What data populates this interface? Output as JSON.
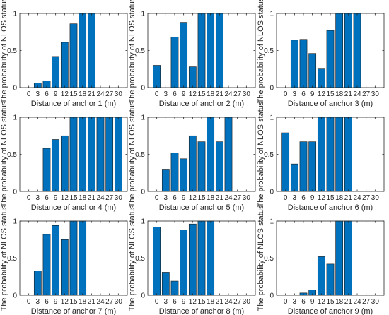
{
  "colors": {
    "bar": "#0072BD",
    "bar_edge": "#1a1a1a",
    "axis": "#262626",
    "background": "#ffffff"
  },
  "chart_data": [
    {
      "type": "bar",
      "xlabel": "Distance of anchor 1 (m)",
      "ylabel": "The probability of NLOS status",
      "categories": [
        "0",
        "3",
        "6",
        "9",
        "12",
        "15",
        "18",
        "21",
        "24",
        "27",
        "30"
      ],
      "values": [
        0,
        0.06,
        0.09,
        0.42,
        0.61,
        0.86,
        1.0,
        1.0,
        0,
        0,
        0
      ],
      "yticks": [
        "0",
        "0.5",
        "1"
      ],
      "ylim": [
        0,
        1
      ]
    },
    {
      "type": "bar",
      "xlabel": "Distance of anchor 2 (m)",
      "ylabel": "The probability of NLOS status",
      "categories": [
        "0",
        "3",
        "6",
        "9",
        "12",
        "15",
        "18",
        "21",
        "24",
        "27",
        "30"
      ],
      "values": [
        0.3,
        0,
        0.68,
        0.88,
        0.28,
        1.0,
        1.0,
        1.0,
        0,
        0,
        0
      ],
      "yticks": [
        "0",
        "0.5",
        "1"
      ],
      "ylim": [
        0,
        1
      ]
    },
    {
      "type": "bar",
      "xlabel": "Distance of anchor 3 (m)",
      "ylabel": "The probability of NLOS status",
      "categories": [
        "0",
        "3",
        "6",
        "9",
        "12",
        "15",
        "18",
        "21",
        "24",
        "27",
        "30"
      ],
      "values": [
        0,
        0.64,
        0.65,
        0.46,
        0.26,
        0.77,
        1.0,
        1.0,
        1.0,
        0,
        0
      ],
      "yticks": [
        "0",
        "0.5",
        "1"
      ],
      "ylim": [
        0,
        1
      ]
    },
    {
      "type": "bar",
      "xlabel": "Distance of anchor 4 (m)",
      "ylabel": "The probability of NLOS status",
      "categories": [
        "0",
        "3",
        "6",
        "9",
        "12",
        "15",
        "18",
        "21",
        "24",
        "27",
        "30"
      ],
      "values": [
        0,
        0,
        0.58,
        0.7,
        0.75,
        1.0,
        1.0,
        1.0,
        1.0,
        1.0,
        1.0
      ],
      "yticks": [
        "0",
        "0.5",
        "1"
      ],
      "ylim": [
        0,
        1
      ]
    },
    {
      "type": "bar",
      "xlabel": "Distance of anchor 5 (m)",
      "ylabel": "The probability of NLOS status",
      "categories": [
        "0",
        "3",
        "6",
        "9",
        "12",
        "15",
        "18",
        "21",
        "24",
        "27",
        "30"
      ],
      "values": [
        0,
        0.3,
        0.52,
        0.44,
        0.75,
        0.67,
        1.0,
        0.67,
        1.0,
        0,
        0
      ],
      "yticks": [
        "0",
        "0.5",
        "1"
      ],
      "ylim": [
        0,
        1
      ]
    },
    {
      "type": "bar",
      "xlabel": "Distance of anchor 6 (m)",
      "ylabel": "The probability of NLOS status",
      "categories": [
        "0",
        "3",
        "6",
        "9",
        "12",
        "15",
        "18",
        "21",
        "24",
        "27",
        "30"
      ],
      "values": [
        0.79,
        0.37,
        0.67,
        0.67,
        1.0,
        1.0,
        1.0,
        1.0,
        0,
        0,
        0
      ],
      "yticks": [
        "0",
        "0.5",
        "1"
      ],
      "ylim": [
        0,
        1
      ]
    },
    {
      "type": "bar",
      "xlabel": "Distance of anchor 7 (m)",
      "ylabel": "The probability of NLOS status",
      "categories": [
        "0",
        "3",
        "6",
        "9",
        "12",
        "15",
        "18",
        "21",
        "24",
        "27",
        "30"
      ],
      "values": [
        0,
        0.33,
        0.82,
        0.94,
        0.75,
        1.0,
        1.0,
        0,
        0,
        0,
        0
      ],
      "yticks": [
        "0",
        "0.5",
        "1"
      ],
      "ylim": [
        0,
        1
      ]
    },
    {
      "type": "bar",
      "xlabel": "Distance of anchor 8 (m)",
      "ylabel": "The probability of NLOS status",
      "categories": [
        "0",
        "3",
        "6",
        "9",
        "12",
        "15",
        "18",
        "21",
        "24",
        "27",
        "30"
      ],
      "values": [
        0.92,
        0.31,
        0.19,
        0.88,
        0.96,
        1.0,
        1.0,
        0,
        0,
        0,
        0
      ],
      "yticks": [
        "0",
        "0.5",
        "1"
      ],
      "ylim": [
        0,
        1
      ]
    },
    {
      "type": "bar",
      "xlabel": "Distance of anchor 9 (m)",
      "ylabel": "The probability of NLOS status",
      "categories": [
        "0",
        "3",
        "6",
        "9",
        "12",
        "15",
        "18",
        "21",
        "24",
        "27",
        "30"
      ],
      "values": [
        0,
        0,
        0.03,
        0.07,
        0.52,
        0.42,
        1.0,
        1.0,
        0,
        0,
        0
      ],
      "yticks": [
        "0",
        "0.5",
        "1"
      ],
      "ylim": [
        0,
        1
      ]
    }
  ]
}
